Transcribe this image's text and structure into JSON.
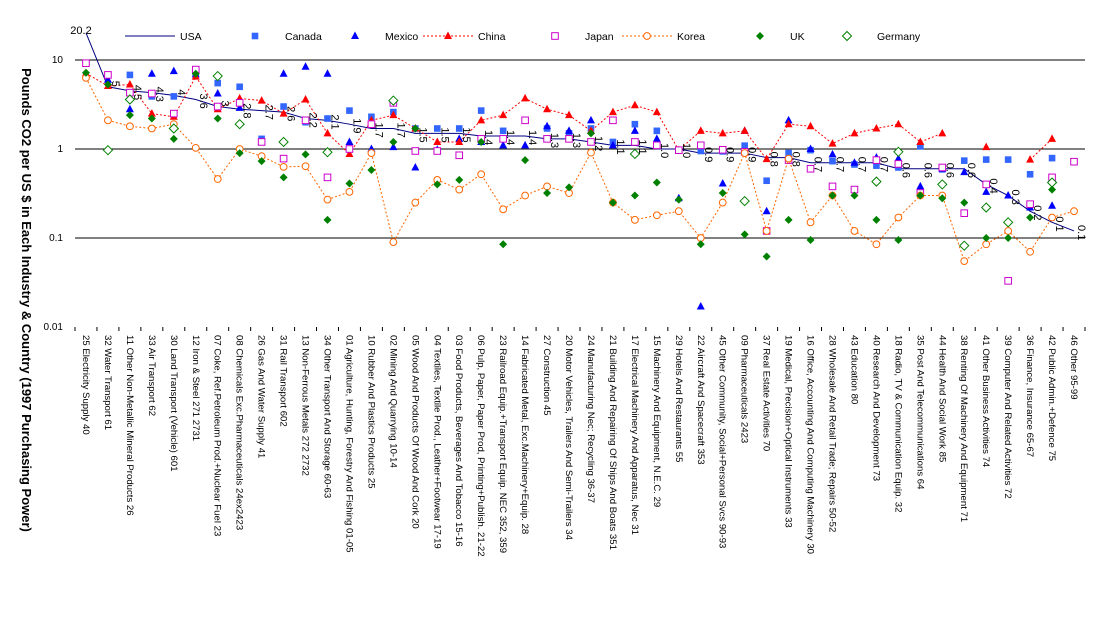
{
  "chart_data": {
    "type": "line",
    "title": "",
    "ylabel": "Pounds CO2 per US $ in Each Industry & Country (1997 Purchasing Power)",
    "yscale": "log",
    "ylim": [
      0.01,
      10
    ],
    "yticks": [
      "10",
      "1",
      "0.1",
      "0.01"
    ],
    "gridlines": [
      10,
      1,
      0.1
    ],
    "legend_position": "top",
    "categories": [
      "25 Electricity Supply 40",
      "32 Water Transport 61",
      "11 Other Non-Metallic Mineral Products 26",
      "33 Air Transport 62",
      "30 Land Transport (Vehicle) 601",
      "12 Iron & Steel 271 2731",
      "07 Coke, Ref.Petroleum Prod.+Nuclear Fuel 23",
      "08 Chemicals Exc.Pharmaceuticals 24ex2423",
      "26 Gas And Water Supply 41",
      "31 Rail Transport 602",
      "13 Non-Ferrous Metals 272 2732",
      "34 Other Transport And Storage 60-63",
      "01 Agriculture, Hunting, Forestry And Fishing 01-05",
      "10 Rubber And Plastics Products 25",
      "02 Mining And Quarrying 10-14",
      "05 Wood And Products Of Wood And Cork 20",
      "04 Textiles, Textile Prod., Leather+Footwear 17-19",
      "03 Food Products, Beverages And Tobacco 15-16",
      "06 Pulp, Paper, Paper Prod, Printing+Publish. 21-22",
      "23 Railroad Equip.+Transport Equip. NEC 352, 359",
      "14 Fabricated Metal, Exc.Machinery+Equip. 28",
      "27 Construction 45",
      "20 Motor Vehicles, Trailers And Semi-Trailers 34",
      "24 Manufacturing Nec; Recycling 36-37",
      "21 Building And Repairing Of Ships And Boats 351",
      "17 Electrical Machinery And Apparatus, Nec 31",
      "15 Machinery And Equipment, N.E.C. 29",
      "29 Hotels And Restaurants 55",
      "22 Aircraft And Spacecraft 353",
      "45 Other Community, Social+Personal Svcs 90-93",
      "09 Pharmaceuticals 2423",
      "37 Real Estate Activities 70",
      "19 Medical, Precision+Optical Instruments 33",
      "16 Office, Accounting And Computing Machinery 30",
      "28 Wholesale And Retail Trade; Repairs 50-52",
      "43 Education 80",
      "40 Research And Development 73",
      "18 Radio, TV & Communication Equip. 32",
      "35 Post And Telecommunications 64",
      "44 Health And Social Work 85",
      "38 Renting Of Machinery And Equipment 71",
      "41 Other Business Activities 74",
      "39 Computer And Related Activities 72",
      "36 Finance, Insurance 65-67",
      "42 Public Admin.+Defence 75",
      "46 Other 95-99"
    ],
    "usa_labels": [
      "20.2",
      "5",
      "4.5",
      "4.3",
      "4",
      "3.6",
      "3",
      "2.8",
      "2.7",
      "2.6",
      "2.2",
      "2.1",
      "1.9",
      "1.7",
      "1.7",
      "1.5",
      "1.5",
      "1.5",
      "1.4",
      "1.4",
      "1.4",
      "1.3",
      "1.3",
      "1.2",
      "1.1",
      "1.1",
      "1.0",
      "1.0",
      "0.9",
      "0.9",
      "0.9",
      "0.8",
      "0.8",
      "0.7",
      "0.7",
      "0.7",
      "0.7",
      "0.6",
      "0.6",
      "0.6",
      "0.6",
      "0.4",
      "0.3",
      "0.2",
      "0.1",
      "0.1"
    ],
    "series": [
      {
        "name": "USA",
        "style": "line",
        "color": "#000080",
        "values": [
          20.2,
          5,
          4.5,
          4.3,
          4,
          3.6,
          3,
          2.8,
          2.7,
          2.6,
          2.2,
          2.1,
          1.9,
          1.7,
          1.7,
          1.5,
          1.5,
          1.5,
          1.4,
          1.4,
          1.4,
          1.3,
          1.3,
          1.2,
          1.1,
          1.1,
          1.0,
          1.0,
          0.9,
          0.9,
          0.9,
          0.8,
          0.8,
          0.7,
          0.7,
          0.7,
          0.7,
          0.6,
          0.6,
          0.6,
          0.6,
          0.4,
          0.3,
          0.2,
          0.15,
          0.12
        ]
      },
      {
        "name": "Canada",
        "style": "square",
        "color": "#3366ff",
        "values": [
          null,
          6.8,
          6.8,
          3.9,
          3.9,
          7,
          5.5,
          5,
          1.3,
          3,
          2,
          2.2,
          2.7,
          2.3,
          2.6,
          1.7,
          1.7,
          1.7,
          2.7,
          1.6,
          2.1,
          1.7,
          1.5,
          1.7,
          1.2,
          1.9,
          1.6,
          0.97,
          0.95,
          0.94,
          1.09,
          0.44,
          0.9,
          0.97,
          0.73,
          0.67,
          0.65,
          0.62,
          1.07,
          0.59,
          0.74,
          0.76,
          0.76,
          0.52,
          0.79,
          null
        ]
      },
      {
        "name": "Mexico",
        "style": "triangle",
        "color": "#0000ff",
        "values": [
          null,
          6,
          2.8,
          7,
          7.5,
          6.9,
          4.2,
          2.9,
          1.2,
          7,
          8.4,
          7,
          1.2,
          1,
          1.05,
          0.62,
          0.98,
          1.3,
          1.2,
          1.1,
          1.1,
          1.8,
          1.6,
          2.1,
          1.1,
          1.6,
          1.3,
          0.28,
          0.017,
          0.41,
          1.6,
          0.2,
          2.1,
          1,
          0.87,
          0.7,
          0.8,
          0.78,
          0.38,
          0.6,
          0.55,
          0.33,
          0.3,
          0.22,
          0.23,
          null
        ]
      },
      {
        "name": "China",
        "style": "triangle-dashed",
        "color": "#ff0000",
        "values": [
          7.1,
          5.1,
          5.3,
          2.5,
          2.3,
          6.5,
          2.8,
          3.7,
          3.5,
          2.5,
          3.6,
          1.5,
          0.88,
          2.1,
          2.4,
          1.7,
          1.2,
          1.2,
          2.1,
          2.4,
          3.7,
          2.8,
          2.4,
          1.6,
          2.6,
          3.1,
          2.6,
          0.97,
          1.6,
          1.5,
          1.6,
          0.77,
          1.9,
          1.8,
          1.15,
          1.5,
          1.7,
          1.9,
          1.2,
          1.5,
          null,
          1.05,
          null,
          0.76,
          1.3,
          null
        ]
      },
      {
        "name": "Japan",
        "style": "open-square",
        "color": "#cc00cc",
        "values": [
          9.2,
          6.8,
          4.3,
          4.2,
          2.5,
          7.8,
          3,
          3.3,
          1.2,
          0.78,
          2.1,
          0.48,
          1,
          1.9,
          3.3,
          0.95,
          0.95,
          0.85,
          1.3,
          1.3,
          2.1,
          1.3,
          1.3,
          1.2,
          2.1,
          1.2,
          1.1,
          0.97,
          1.1,
          0.98,
          0.93,
          0.12,
          0.75,
          0.6,
          0.38,
          0.35,
          0.75,
          0.68,
          0.32,
          0.62,
          0.19,
          0.4,
          0.033,
          0.24,
          0.48,
          0.72
        ]
      },
      {
        "name": "Korea",
        "style": "circle-dashed",
        "color": "#ff6600",
        "values": [
          6.3,
          2.1,
          1.8,
          1.7,
          1.9,
          1.03,
          0.46,
          1,
          0.83,
          0.63,
          0.64,
          0.27,
          0.33,
          0.9,
          0.09,
          0.25,
          0.45,
          0.35,
          0.52,
          0.21,
          0.3,
          0.38,
          0.32,
          0.91,
          0.25,
          0.16,
          0.18,
          0.2,
          0.1,
          0.25,
          0.9,
          0.12,
          0.78,
          0.15,
          0.3,
          0.12,
          0.085,
          0.17,
          0.3,
          0.3,
          0.055,
          0.085,
          0.12,
          0.07,
          0.17,
          0.2
        ]
      },
      {
        "name": "UK",
        "style": "diamond",
        "color": "#008000",
        "values": [
          7.2,
          5.3,
          2.4,
          2.2,
          1.3,
          7,
          2.2,
          0.9,
          0.73,
          0.48,
          0.87,
          0.16,
          0.41,
          0.58,
          1.2,
          1.7,
          0.4,
          0.45,
          1.2,
          0.085,
          0.75,
          0.32,
          0.37,
          1.5,
          0.25,
          0.3,
          0.42,
          0.27,
          0.085,
          0.32,
          0.11,
          0.062,
          0.16,
          0.095,
          0.3,
          0.3,
          0.16,
          0.095,
          0.3,
          0.28,
          0.25,
          0.1,
          0.1,
          0.17,
          0.35,
          null
        ]
      },
      {
        "name": "Germany",
        "style": "open-diamond",
        "color": "#008000",
        "values": [
          null,
          0.97,
          3.6,
          null,
          1.7,
          null,
          6.6,
          1.9,
          null,
          1.2,
          null,
          0.92,
          null,
          null,
          3.5,
          null,
          null,
          null,
          null,
          null,
          null,
          null,
          null,
          null,
          null,
          0.88,
          null,
          null,
          null,
          null,
          0.26,
          null,
          null,
          null,
          null,
          null,
          0.43,
          0.93,
          null,
          0.4,
          0.082,
          0.22,
          0.15,
          null,
          0.42,
          null
        ]
      }
    ]
  }
}
